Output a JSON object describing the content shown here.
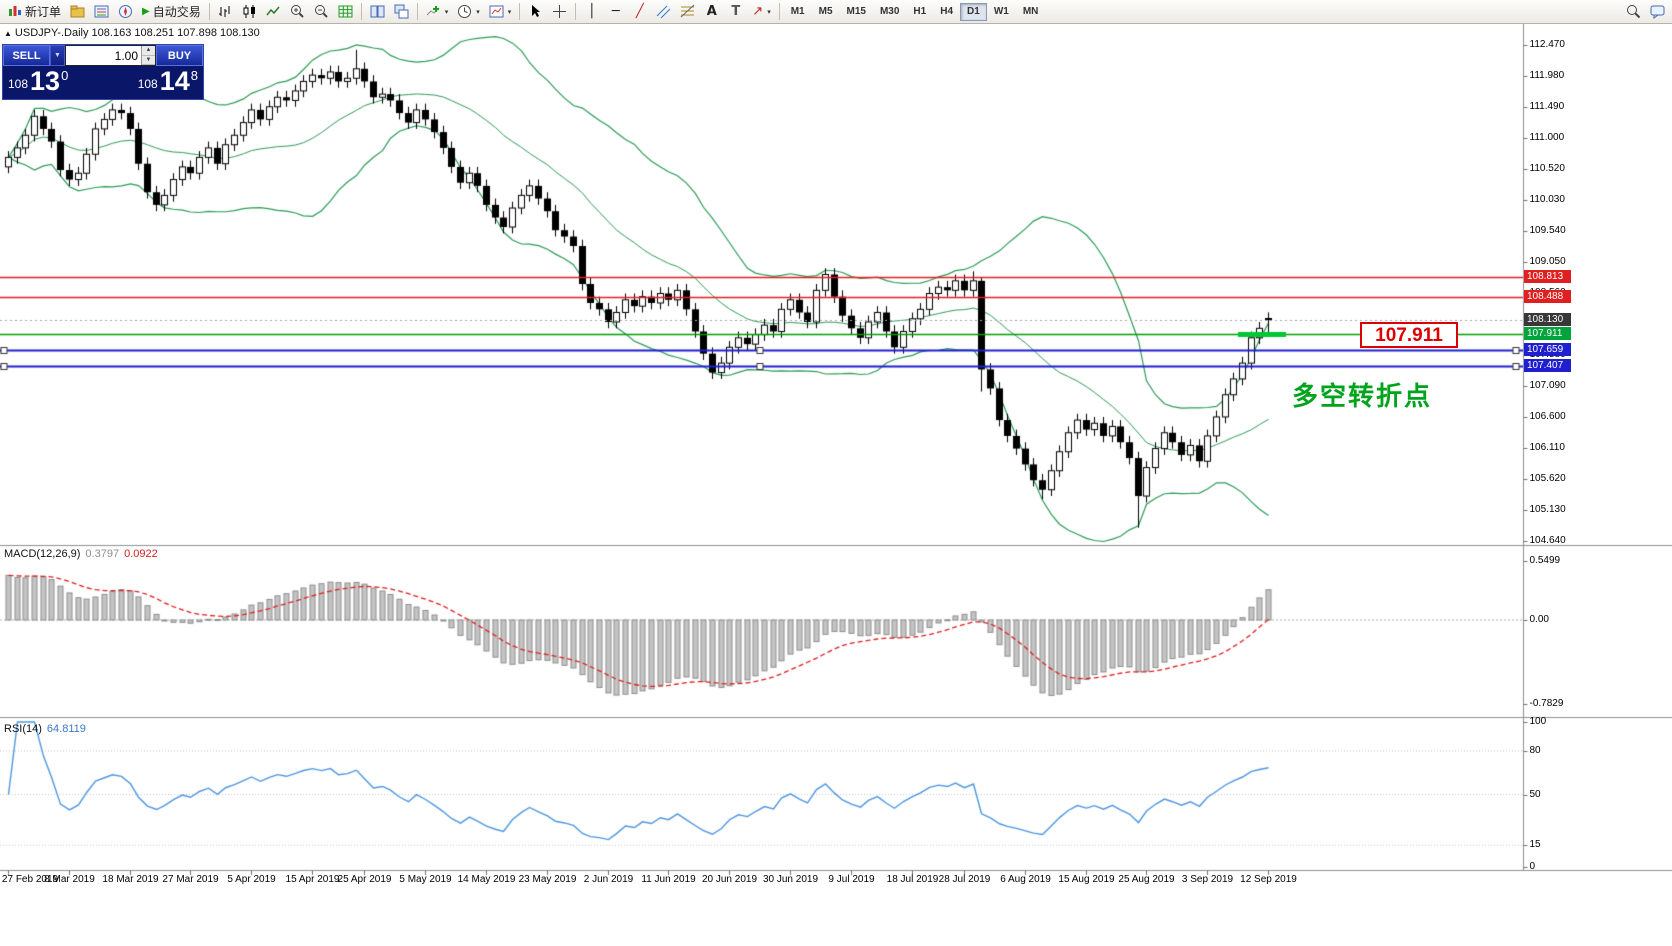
{
  "toolbar": {
    "new_order": "新订单",
    "autotrading": "自动交易",
    "timeframes": [
      "M1",
      "M5",
      "M15",
      "M30",
      "H1",
      "H4",
      "D1",
      "W1",
      "MN"
    ],
    "active_timeframe": "D1",
    "glyphs": {
      "caret": "▾",
      "play": "▶",
      "vline": "│",
      "hline": "─",
      "trendline": "╱",
      "text_tool": "A",
      "label_tool": "T",
      "arrow_tool": "↗"
    }
  },
  "chart": {
    "window_icon": "▲",
    "symbol_title": "USDJPY-.Daily",
    "ohlc": "108.163 108.251 107.898 108.130"
  },
  "trade_panel": {
    "sell_label": "SELL",
    "buy_label": "BUY",
    "volume": "1.00",
    "menu_caret": "▼",
    "spin_up": "▲",
    "spin_down": "▼",
    "sell_price": {
      "prefix": "108",
      "big": "13",
      "sup": "0"
    },
    "buy_price": {
      "prefix": "108",
      "big": "14",
      "sup": "8"
    }
  },
  "annotations": {
    "price_label": "107.911",
    "turning_point": "多空转折点"
  },
  "price_scale": {
    "labels": [
      {
        "t": "112.470",
        "v": 112.47
      },
      {
        "t": "111.980",
        "v": 111.98
      },
      {
        "t": "111.490",
        "v": 111.49
      },
      {
        "t": "111.000",
        "v": 111.0
      },
      {
        "t": "110.520",
        "v": 110.52
      },
      {
        "t": "110.030",
        "v": 110.03
      },
      {
        "t": "109.540",
        "v": 109.54
      },
      {
        "t": "109.050",
        "v": 109.05
      },
      {
        "t": "108.560",
        "v": 108.56
      },
      {
        "t": "108.070",
        "v": 108.07
      },
      {
        "t": "107.580",
        "v": 107.58
      },
      {
        "t": "107.090",
        "v": 107.09
      },
      {
        "t": "106.600",
        "v": 106.6
      },
      {
        "t": "106.110",
        "v": 106.11
      },
      {
        "t": "105.620",
        "v": 105.62
      },
      {
        "t": "105.130",
        "v": 105.13
      },
      {
        "t": "104.640",
        "v": 104.64
      }
    ],
    "tags": [
      {
        "t": "108.813",
        "v": 108.813,
        "c": "#e02020"
      },
      {
        "t": "108.488",
        "v": 108.488,
        "c": "#e02020"
      },
      {
        "t": "108.130",
        "v": 108.13,
        "c": "#383838"
      },
      {
        "t": "107.911",
        "v": 107.911,
        "c": "#00a43c"
      },
      {
        "t": "107.659",
        "v": 107.659,
        "c": "#1f1fd0"
      },
      {
        "t": "107.407",
        "v": 107.407,
        "c": "#1f1fd0"
      }
    ]
  },
  "hlines": [
    {
      "price": 108.813,
      "color": "#e02020",
      "w": 1.4
    },
    {
      "price": 108.488,
      "color": "#e02020",
      "w": 1.4
    },
    {
      "price": 107.911,
      "color": "#00a000",
      "w": 1.4
    },
    {
      "price": 107.659,
      "color": "#1f1fd0",
      "w": 2,
      "handles": true
    },
    {
      "price": 107.407,
      "color": "#1f1fd0",
      "w": 2,
      "handles": true
    },
    {
      "price": 108.13,
      "color": "#a8a8a8",
      "w": 1,
      "dash": [
        2,
        3
      ]
    }
  ],
  "segment": {
    "price": 107.911,
    "color": "#00c832",
    "w": 5
  },
  "macd_panel": {
    "name": "MACD(12,26,9)",
    "main_value": "0.3797",
    "signal_value": "0.0922",
    "scale": [
      {
        "t": "0.5499",
        "v": 0.5499
      },
      {
        "t": "0.00",
        "v": 0
      },
      {
        "t": "-0.7829",
        "v": -0.7829
      }
    ]
  },
  "rsi_panel": {
    "name": "RSI(14)",
    "value": "64.8119",
    "scale": [
      {
        "t": "100",
        "v": 100
      },
      {
        "t": "80",
        "v": 80
      },
      {
        "t": "50",
        "v": 50
      },
      {
        "t": "15",
        "v": 15
      },
      {
        "t": "0",
        "v": 0
      }
    ]
  },
  "chart_data": {
    "type": "candlestick",
    "symbol": "USDJPY",
    "timeframe": "Daily",
    "current_price": 108.13,
    "ylim": [
      104.64,
      112.47
    ],
    "indicators": {
      "bollinger": {
        "period": 20,
        "deviation": 2,
        "color": "#2e9b57"
      },
      "macd": {
        "fast": 12,
        "slow": 26,
        "signal": 9,
        "histogram_color": "#c4c4c4",
        "signal_color": "#e02020"
      },
      "rsi": {
        "period": 14,
        "color": "#4e96e0",
        "levels": [
          80,
          50,
          15
        ]
      }
    },
    "dates": [
      "27 Feb 2019",
      "8 Mar 2019",
      "18 Mar 2019",
      "27 Mar 2019",
      "5 Apr 2019",
      "15 Apr 2019",
      "25 Apr 2019",
      "5 May 2019",
      "14 May 2019",
      "23 May 2019",
      "2 Jun 2019",
      "11 Jun 2019",
      "20 Jun 2019",
      "30 Jun 2019",
      "9 Jul 2019",
      "18 Jul 2019",
      "28 Jul 2019",
      "6 Aug 2019",
      "15 Aug 2019",
      "25 Aug 2019",
      "3 Sep 2019",
      "12 Sep 2019"
    ],
    "candles": [
      [
        110.55,
        110.8,
        110.45,
        110.7
      ],
      [
        110.7,
        110.95,
        110.6,
        110.85
      ],
      [
        110.85,
        111.15,
        110.75,
        111.05
      ],
      [
        111.05,
        111.45,
        110.95,
        111.35
      ],
      [
        111.35,
        111.45,
        111.05,
        111.15
      ],
      [
        111.15,
        111.25,
        110.85,
        110.95
      ],
      [
        110.95,
        111.05,
        110.4,
        110.5
      ],
      [
        110.5,
        110.6,
        110.25,
        110.35
      ],
      [
        110.35,
        110.55,
        110.25,
        110.45
      ],
      [
        110.45,
        110.85,
        110.35,
        110.75
      ],
      [
        110.75,
        111.25,
        110.65,
        111.15
      ],
      [
        111.15,
        111.4,
        111.05,
        111.3
      ],
      [
        111.3,
        111.55,
        111.2,
        111.45
      ],
      [
        111.45,
        111.55,
        111.3,
        111.4
      ],
      [
        111.4,
        111.5,
        111.05,
        111.15
      ],
      [
        111.15,
        111.25,
        110.5,
        110.6
      ],
      [
        110.6,
        110.7,
        110.05,
        110.15
      ],
      [
        110.15,
        110.25,
        109.85,
        109.95
      ],
      [
        109.95,
        110.2,
        109.85,
        110.1
      ],
      [
        110.1,
        110.45,
        110.0,
        110.35
      ],
      [
        110.35,
        110.65,
        110.25,
        110.55
      ],
      [
        110.55,
        110.65,
        110.35,
        110.45
      ],
      [
        110.45,
        110.8,
        110.35,
        110.7
      ],
      [
        110.7,
        110.95,
        110.6,
        110.85
      ],
      [
        110.85,
        110.95,
        110.5,
        110.6
      ],
      [
        110.6,
        111.0,
        110.5,
        110.9
      ],
      [
        110.9,
        111.15,
        110.8,
        111.05
      ],
      [
        111.05,
        111.35,
        110.95,
        111.25
      ],
      [
        111.25,
        111.55,
        111.15,
        111.45
      ],
      [
        111.45,
        111.55,
        111.2,
        111.3
      ],
      [
        111.3,
        111.6,
        111.2,
        111.5
      ],
      [
        111.5,
        111.75,
        111.4,
        111.65
      ],
      [
        111.65,
        111.75,
        111.5,
        111.6
      ],
      [
        111.6,
        111.85,
        111.5,
        111.75
      ],
      [
        111.75,
        112.0,
        111.65,
        111.9
      ],
      [
        111.9,
        112.1,
        111.8,
        112.0
      ],
      [
        112.0,
        112.1,
        111.85,
        111.95
      ],
      [
        111.95,
        112.15,
        111.85,
        112.05
      ],
      [
        112.05,
        112.15,
        111.8,
        111.9
      ],
      [
        111.9,
        112.05,
        111.8,
        111.95
      ],
      [
        111.95,
        112.4,
        111.85,
        112.1
      ],
      [
        112.1,
        112.2,
        111.8,
        111.9
      ],
      [
        111.9,
        112.0,
        111.55,
        111.65
      ],
      [
        111.65,
        111.8,
        111.55,
        111.7
      ],
      [
        111.7,
        111.8,
        111.5,
        111.6
      ],
      [
        111.6,
        111.7,
        111.3,
        111.4
      ],
      [
        111.4,
        111.5,
        111.15,
        111.25
      ],
      [
        111.25,
        111.55,
        111.15,
        111.45
      ],
      [
        111.45,
        111.55,
        111.2,
        111.3
      ],
      [
        111.3,
        111.4,
        111.0,
        111.1
      ],
      [
        111.1,
        111.2,
        110.75,
        110.85
      ],
      [
        110.85,
        110.95,
        110.45,
        110.55
      ],
      [
        110.55,
        110.65,
        110.2,
        110.3
      ],
      [
        110.3,
        110.55,
        110.2,
        110.45
      ],
      [
        110.45,
        110.55,
        110.15,
        110.25
      ],
      [
        110.25,
        110.35,
        109.85,
        109.95
      ],
      [
        109.95,
        110.05,
        109.65,
        109.75
      ],
      [
        109.75,
        109.85,
        109.5,
        109.6
      ],
      [
        109.6,
        110.0,
        109.5,
        109.9
      ],
      [
        109.9,
        110.2,
        109.8,
        110.1
      ],
      [
        110.1,
        110.35,
        110.0,
        110.25
      ],
      [
        110.25,
        110.35,
        109.95,
        110.05
      ],
      [
        110.05,
        110.15,
        109.75,
        109.85
      ],
      [
        109.85,
        109.95,
        109.45,
        109.55
      ],
      [
        109.55,
        109.65,
        109.35,
        109.45
      ],
      [
        109.45,
        109.55,
        109.2,
        109.3
      ],
      [
        109.3,
        109.4,
        108.6,
        108.7
      ],
      [
        108.7,
        108.8,
        108.3,
        108.4
      ],
      [
        108.4,
        108.5,
        108.2,
        108.3
      ],
      [
        108.3,
        108.4,
        108.0,
        108.1
      ],
      [
        108.1,
        108.35,
        108.0,
        108.25
      ],
      [
        108.25,
        108.55,
        108.15,
        108.45
      ],
      [
        108.45,
        108.55,
        108.25,
        108.35
      ],
      [
        108.35,
        108.6,
        108.25,
        108.5
      ],
      [
        108.5,
        108.6,
        108.3,
        108.4
      ],
      [
        108.4,
        108.65,
        108.3,
        108.55
      ],
      [
        108.55,
        108.65,
        108.35,
        108.45
      ],
      [
        108.45,
        108.7,
        108.35,
        108.6
      ],
      [
        108.6,
        108.7,
        108.2,
        108.3
      ],
      [
        108.3,
        108.4,
        107.85,
        107.95
      ],
      [
        107.95,
        108.05,
        107.5,
        107.6
      ],
      [
        107.6,
        107.7,
        107.2,
        107.3
      ],
      [
        107.3,
        107.55,
        107.2,
        107.45
      ],
      [
        107.45,
        107.8,
        107.35,
        107.7
      ],
      [
        107.7,
        107.95,
        107.6,
        107.85
      ],
      [
        107.85,
        107.95,
        107.65,
        107.75
      ],
      [
        107.75,
        108.0,
        107.65,
        107.9
      ],
      [
        107.9,
        108.15,
        107.8,
        108.05
      ],
      [
        108.05,
        108.15,
        107.85,
        107.95
      ],
      [
        107.95,
        108.4,
        107.85,
        108.3
      ],
      [
        108.3,
        108.55,
        108.2,
        108.45
      ],
      [
        108.45,
        108.55,
        108.15,
        108.25
      ],
      [
        108.25,
        108.35,
        108.0,
        108.1
      ],
      [
        108.1,
        108.7,
        108.0,
        108.6
      ],
      [
        108.6,
        108.95,
        108.5,
        108.85
      ],
      [
        108.85,
        108.95,
        108.4,
        108.5
      ],
      [
        108.5,
        108.6,
        108.1,
        108.2
      ],
      [
        108.2,
        108.3,
        107.9,
        108.0
      ],
      [
        108.0,
        108.1,
        107.75,
        107.85
      ],
      [
        107.85,
        108.2,
        107.75,
        108.1
      ],
      [
        108.1,
        108.35,
        108.0,
        108.25
      ],
      [
        108.25,
        108.35,
        107.85,
        107.95
      ],
      [
        107.95,
        108.05,
        107.6,
        107.7
      ],
      [
        107.7,
        108.05,
        107.6,
        107.95
      ],
      [
        107.95,
        108.25,
        107.85,
        108.15
      ],
      [
        108.15,
        108.4,
        108.05,
        108.3
      ],
      [
        108.3,
        108.65,
        108.2,
        108.55
      ],
      [
        108.55,
        108.75,
        108.45,
        108.65
      ],
      [
        108.65,
        108.75,
        108.5,
        108.6
      ],
      [
        108.6,
        108.85,
        108.5,
        108.75
      ],
      [
        108.75,
        108.85,
        108.5,
        108.6
      ],
      [
        108.6,
        108.9,
        108.5,
        108.75
      ],
      [
        108.75,
        108.8,
        107.0,
        107.35
      ],
      [
        107.35,
        107.45,
        106.95,
        107.05
      ],
      [
        107.05,
        107.15,
        106.45,
        106.55
      ],
      [
        106.55,
        106.65,
        106.2,
        106.3
      ],
      [
        106.3,
        106.4,
        106.0,
        106.1
      ],
      [
        106.1,
        106.2,
        105.75,
        105.85
      ],
      [
        105.85,
        105.95,
        105.5,
        105.6
      ],
      [
        105.6,
        105.7,
        105.3,
        105.45
      ],
      [
        105.45,
        105.85,
        105.35,
        105.75
      ],
      [
        105.75,
        106.15,
        105.65,
        106.05
      ],
      [
        106.05,
        106.45,
        105.95,
        106.35
      ],
      [
        106.35,
        106.65,
        106.25,
        106.55
      ],
      [
        106.55,
        106.65,
        106.3,
        106.4
      ],
      [
        106.4,
        106.6,
        106.3,
        106.5
      ],
      [
        106.5,
        106.6,
        106.2,
        106.3
      ],
      [
        106.3,
        106.55,
        106.2,
        106.45
      ],
      [
        106.45,
        106.55,
        106.1,
        106.2
      ],
      [
        106.2,
        106.3,
        105.85,
        105.95
      ],
      [
        105.95,
        106.05,
        104.85,
        105.35
      ],
      [
        105.35,
        105.9,
        105.25,
        105.8
      ],
      [
        105.8,
        106.2,
        105.7,
        106.1
      ],
      [
        106.1,
        106.45,
        106.0,
        106.35
      ],
      [
        106.35,
        106.45,
        106.1,
        106.2
      ],
      [
        106.2,
        106.3,
        105.9,
        106.0
      ],
      [
        106.0,
        106.25,
        105.9,
        106.15
      ],
      [
        106.15,
        106.25,
        105.8,
        105.9
      ],
      [
        105.9,
        106.4,
        105.8,
        106.3
      ],
      [
        106.3,
        106.7,
        106.2,
        106.6
      ],
      [
        106.6,
        107.05,
        106.5,
        106.95
      ],
      [
        106.95,
        107.3,
        106.85,
        107.2
      ],
      [
        107.2,
        107.55,
        107.1,
        107.45
      ],
      [
        107.45,
        107.95,
        107.35,
        107.85
      ],
      [
        107.85,
        108.1,
        107.75,
        108.0
      ],
      [
        108.163,
        108.251,
        107.898,
        108.13
      ]
    ]
  }
}
